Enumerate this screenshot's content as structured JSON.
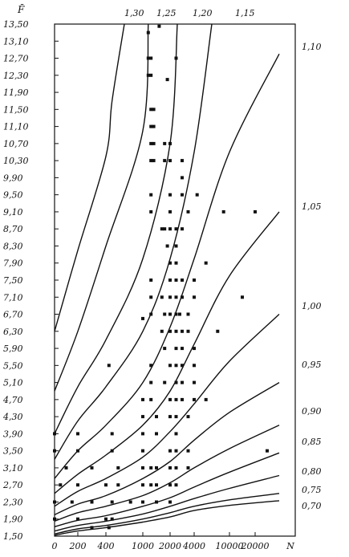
{
  "chart_data": {
    "type": "scatter",
    "title": "",
    "ylabel": "F̄",
    "xlabel": "N",
    "y_ticks": [
      "1,50",
      "1,90",
      "2,30",
      "2,70",
      "3,10",
      "3,50",
      "3,90",
      "4,30",
      "4,70",
      "5,10",
      "5,50",
      "5,90",
      "6,30",
      "6,70",
      "7,10",
      "7,50",
      "7,90",
      "8,30",
      "8,70",
      "9,10",
      "9,50",
      "9,90",
      "10,30",
      "10,70",
      "11,10",
      "11,50",
      "11,90",
      "12,30",
      "12,70",
      "13,10",
      "13,50"
    ],
    "x_ticks": [
      "0",
      "200",
      "400",
      "1000",
      "2000",
      "4000",
      "10000",
      "20000",
      "N"
    ],
    "ylim": [
      1.5,
      13.5
    ],
    "x_scale": "nonlinear",
    "curve_labels": [
      "1,30",
      "1,25",
      "1,20",
      "1,15",
      "1,10",
      "1,05",
      "1,00",
      "0,95",
      "0,90",
      "0,85",
      "0,80",
      "0,75",
      "0,70"
    ],
    "curves": [
      {
        "label": "1,30",
        "x": [
          0,
          200,
          400,
          500,
          700
        ],
        "y": [
          6.3,
          8.2,
          10.4,
          11.7,
          13.5
        ]
      },
      {
        "label": "1,25",
        "x": [
          0,
          200,
          400,
          1000,
          1200
        ],
        "y": [
          4.9,
          6.3,
          8.3,
          11.0,
          13.5
        ]
      },
      {
        "label": "1,20",
        "x": [
          0,
          200,
          400,
          1000,
          2000,
          2600
        ],
        "y": [
          3.9,
          5.0,
          6.1,
          8.0,
          10.7,
          13.5
        ]
      },
      {
        "label": "1,15",
        "x": [
          0,
          200,
          400,
          1000,
          2000,
          4000,
          7000
        ],
        "y": [
          3.3,
          4.2,
          5.0,
          6.3,
          8.0,
          10.5,
          13.5
        ]
      },
      {
        "label": "1,10",
        "x": [
          0,
          200,
          400,
          1000,
          2000,
          4000,
          10000,
          30000
        ],
        "y": [
          2.85,
          3.5,
          4.1,
          5.1,
          6.4,
          8.0,
          10.5,
          12.8
        ]
      },
      {
        "label": "1,05",
        "x": [
          0,
          200,
          400,
          1000,
          2000,
          4000,
          10000,
          30000
        ],
        "y": [
          2.5,
          2.95,
          3.4,
          4.1,
          4.9,
          6.0,
          7.6,
          9.1
        ]
      },
      {
        "label": "1,00",
        "x": [
          0,
          200,
          400,
          1000,
          2000,
          4000,
          10000,
          30000
        ],
        "y": [
          2.2,
          2.55,
          2.85,
          3.35,
          3.95,
          4.6,
          5.6,
          6.7
        ]
      },
      {
        "label": "0,95",
        "x": [
          0,
          200,
          400,
          1000,
          2000,
          4000,
          10000,
          30000
        ],
        "y": [
          2.0,
          2.25,
          2.45,
          2.85,
          3.25,
          3.75,
          4.4,
          5.1
        ]
      },
      {
        "label": "0,90",
        "x": [
          0,
          200,
          400,
          1000,
          2000,
          4000,
          10000,
          30000
        ],
        "y": [
          1.85,
          2.05,
          2.2,
          2.45,
          2.75,
          3.1,
          3.55,
          4.1
        ]
      },
      {
        "label": "0,85",
        "x": [
          0,
          200,
          400,
          1000,
          2000,
          4000,
          10000,
          30000
        ],
        "y": [
          1.72,
          1.87,
          1.98,
          2.2,
          2.4,
          2.65,
          3.0,
          3.45
        ]
      },
      {
        "label": "0,80",
        "x": [
          0,
          200,
          400,
          1000,
          2000,
          4000,
          10000,
          30000
        ],
        "y": [
          1.62,
          1.75,
          1.85,
          2.02,
          2.2,
          2.38,
          2.62,
          2.92
        ]
      },
      {
        "label": "0,75",
        "x": [
          0,
          200,
          400,
          1000,
          2000,
          4000,
          10000,
          30000
        ],
        "y": [
          1.55,
          1.67,
          1.75,
          1.9,
          2.05,
          2.2,
          2.35,
          2.5
        ]
      },
      {
        "label": "0,70",
        "x": [
          0,
          200,
          400,
          1000,
          2000,
          4000,
          10000,
          30000
        ],
        "y": [
          1.52,
          1.62,
          1.7,
          1.83,
          1.95,
          2.1,
          2.22,
          2.33
        ]
      }
    ],
    "points": [
      [
        1200,
        13.3
      ],
      [
        1600,
        13.45
      ],
      [
        1200,
        12.7
      ],
      [
        1300,
        12.7
      ],
      [
        2500,
        12.7
      ],
      [
        1200,
        12.3
      ],
      [
        1300,
        12.3
      ],
      [
        1900,
        12.2
      ],
      [
        1300,
        11.5
      ],
      [
        1400,
        11.5
      ],
      [
        1300,
        11.1
      ],
      [
        1400,
        11.1
      ],
      [
        1300,
        10.7
      ],
      [
        1400,
        10.7
      ],
      [
        1800,
        10.7
      ],
      [
        2000,
        10.7
      ],
      [
        3000,
        10.3
      ],
      [
        1300,
        10.3
      ],
      [
        1400,
        10.3
      ],
      [
        1800,
        10.3
      ],
      [
        2000,
        10.3
      ],
      [
        3000,
        9.9
      ],
      [
        1300,
        9.5
      ],
      [
        2000,
        9.5
      ],
      [
        3000,
        9.5
      ],
      [
        4500,
        9.5
      ],
      [
        1300,
        9.1
      ],
      [
        2000,
        9.1
      ],
      [
        3500,
        9.1
      ],
      [
        9000,
        9.1
      ],
      [
        20000,
        9.1
      ],
      [
        1700,
        8.7
      ],
      [
        1800,
        8.7
      ],
      [
        2000,
        8.7
      ],
      [
        2500,
        8.7
      ],
      [
        3000,
        8.7
      ],
      [
        1900,
        8.3
      ],
      [
        2500,
        8.3
      ],
      [
        2000,
        7.9
      ],
      [
        2500,
        7.9
      ],
      [
        6000,
        7.9
      ],
      [
        1300,
        7.5
      ],
      [
        2000,
        7.5
      ],
      [
        2500,
        7.5
      ],
      [
        3000,
        7.5
      ],
      [
        4000,
        7.5
      ],
      [
        1300,
        7.1
      ],
      [
        1700,
        7.1
      ],
      [
        2000,
        7.1
      ],
      [
        2500,
        7.1
      ],
      [
        3000,
        7.1
      ],
      [
        4000,
        7.1
      ],
      [
        15000,
        7.1
      ],
      [
        1300,
        6.7
      ],
      [
        1800,
        6.7
      ],
      [
        2000,
        6.7
      ],
      [
        2500,
        6.7
      ],
      [
        2800,
        6.7
      ],
      [
        3500,
        6.7
      ],
      [
        1000,
        6.6
      ],
      [
        1700,
        6.3
      ],
      [
        2000,
        6.3
      ],
      [
        2500,
        6.3
      ],
      [
        3000,
        6.3
      ],
      [
        3500,
        6.3
      ],
      [
        8000,
        6.3
      ],
      [
        1800,
        5.9
      ],
      [
        2500,
        5.9
      ],
      [
        3000,
        5.9
      ],
      [
        4000,
        5.9
      ],
      [
        1300,
        5.5
      ],
      [
        2000,
        5.5
      ],
      [
        2500,
        5.5
      ],
      [
        3000,
        5.5
      ],
      [
        4000,
        5.5
      ],
      [
        450,
        5.5
      ],
      [
        1300,
        5.1
      ],
      [
        1800,
        5.1
      ],
      [
        2500,
        5.1
      ],
      [
        3000,
        5.1
      ],
      [
        4000,
        5.1
      ],
      [
        1000,
        4.7
      ],
      [
        1300,
        4.7
      ],
      [
        2000,
        4.7
      ],
      [
        2500,
        4.7
      ],
      [
        3000,
        4.7
      ],
      [
        4000,
        4.7
      ],
      [
        6000,
        4.7
      ],
      [
        1000,
        4.3
      ],
      [
        1500,
        4.3
      ],
      [
        2000,
        4.3
      ],
      [
        2500,
        4.3
      ],
      [
        3500,
        4.3
      ],
      [
        0,
        3.9
      ],
      [
        200,
        3.9
      ],
      [
        500,
        3.9
      ],
      [
        1000,
        3.9
      ],
      [
        1500,
        3.9
      ],
      [
        2500,
        3.9
      ],
      [
        0,
        3.5
      ],
      [
        200,
        3.5
      ],
      [
        500,
        3.5
      ],
      [
        1000,
        3.5
      ],
      [
        2000,
        3.5
      ],
      [
        2500,
        3.5
      ],
      [
        3500,
        3.5
      ],
      [
        25000,
        3.5
      ],
      [
        100,
        3.1
      ],
      [
        300,
        3.1
      ],
      [
        600,
        3.1
      ],
      [
        1000,
        3.1
      ],
      [
        1300,
        3.1
      ],
      [
        1500,
        3.1
      ],
      [
        2000,
        3.1
      ],
      [
        2500,
        3.1
      ],
      [
        3500,
        3.1
      ],
      [
        50,
        2.7
      ],
      [
        200,
        2.7
      ],
      [
        400,
        2.7
      ],
      [
        600,
        2.7
      ],
      [
        1000,
        2.7
      ],
      [
        1300,
        2.7
      ],
      [
        1500,
        2.7
      ],
      [
        2000,
        2.7
      ],
      [
        2500,
        2.7
      ],
      [
        0,
        2.3
      ],
      [
        150,
        2.3
      ],
      [
        300,
        2.3
      ],
      [
        500,
        2.3
      ],
      [
        800,
        2.3
      ],
      [
        1000,
        2.3
      ],
      [
        1500,
        2.3
      ],
      [
        2000,
        2.3
      ],
      [
        0,
        1.9
      ],
      [
        200,
        1.9
      ],
      [
        400,
        1.9
      ],
      [
        500,
        1.9
      ],
      [
        300,
        1.7
      ],
      [
        450,
        1.7
      ]
    ],
    "grid": false
  }
}
